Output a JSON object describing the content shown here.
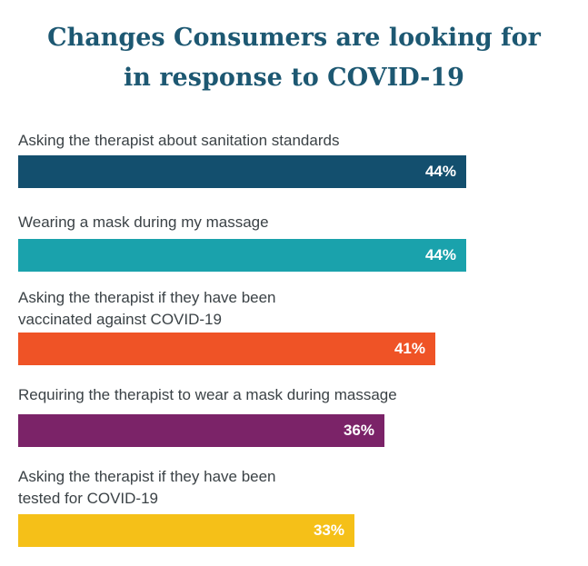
{
  "title_lines": [
    "Changes Consumers are looking for",
    "in response to COVID-19"
  ],
  "chart_data": {
    "type": "bar",
    "orientation": "horizontal",
    "title": "Changes Consumers are looking for in response to COVID-19",
    "categories": [
      [
        "Asking the therapist about sanitation standards"
      ],
      [
        "Wearing a mask during my massage"
      ],
      [
        "Asking the therapist if they have been",
        "vaccinated against COVID-19"
      ],
      [
        "Requiring the therapist to wear a mask during massage"
      ],
      [
        "Asking the therapist if they have been",
        "tested for COVID-19"
      ]
    ],
    "values": [
      44,
      44,
      41,
      36,
      33
    ],
    "value_labels": [
      "44%",
      "44%",
      "41%",
      "36%",
      "33%"
    ],
    "colors": [
      "#134f6e",
      "#1aa2ac",
      "#ef5326",
      "#7b2368",
      "#f5c018"
    ],
    "unit": "%",
    "xlim": [
      0,
      100
    ],
    "xlabel": "",
    "ylabel": "",
    "grid": false,
    "legend": "none"
  }
}
